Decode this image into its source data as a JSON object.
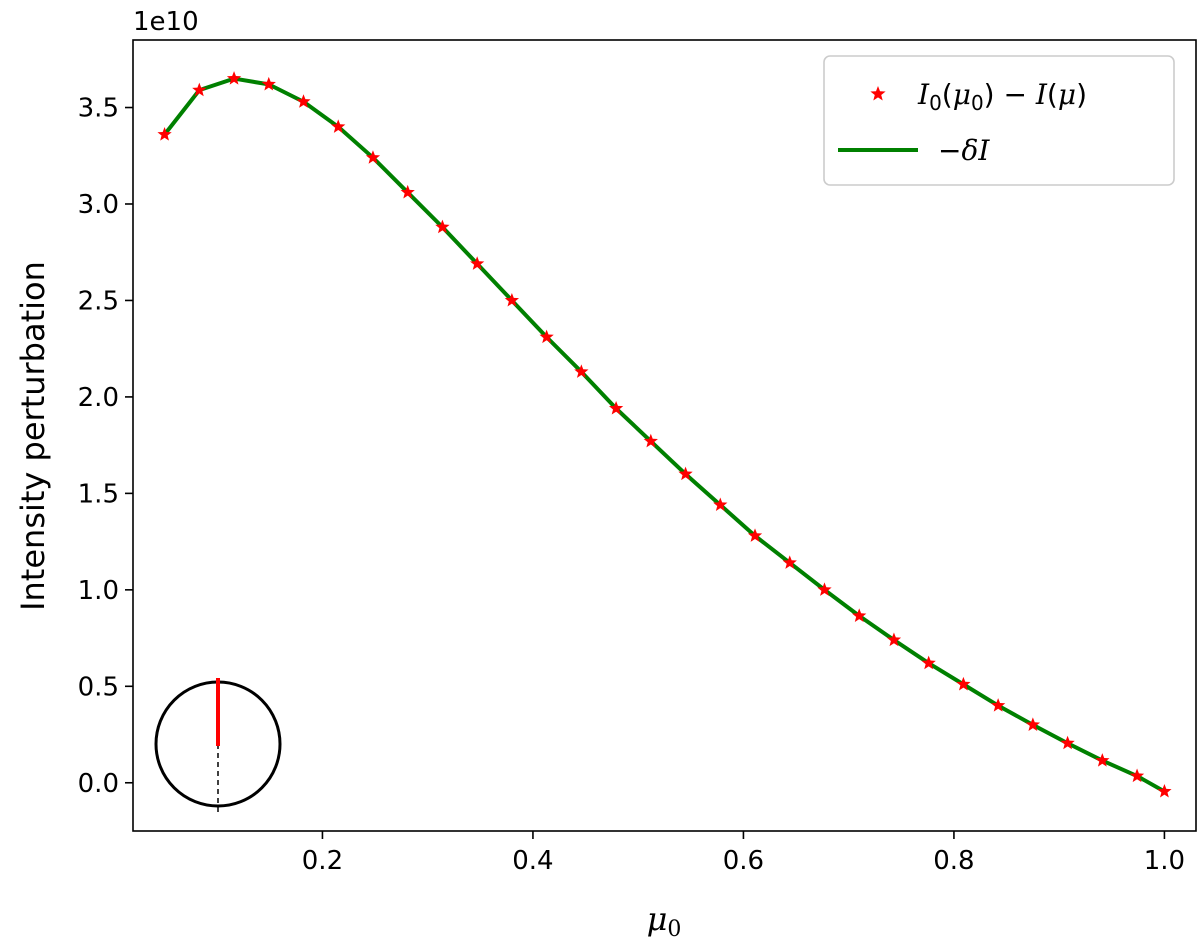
{
  "chart_data": {
    "type": "line",
    "xlabel": "μ0",
    "ylabel": "Intensity perturbation",
    "offset_text": "1e10",
    "xlim": [
      0.02,
      1.03
    ],
    "ylim": [
      -0.25,
      3.85
    ],
    "x_ticks": [
      0.2,
      0.4,
      0.6,
      0.8,
      1.0
    ],
    "x_tick_labels": [
      "0.2",
      "0.4",
      "0.6",
      "0.8",
      "1.0"
    ],
    "y_ticks": [
      0.0,
      0.5,
      1.0,
      1.5,
      2.0,
      2.5,
      3.0,
      3.5
    ],
    "y_tick_labels": [
      "0.0",
      "0.5",
      "1.0",
      "1.5",
      "2.0",
      "2.5",
      "3.0",
      "3.5"
    ],
    "grid": false,
    "legend_position": "top-right",
    "series": [
      {
        "name": "I0(μ0) − I(μ)",
        "style": "markers",
        "marker": "star",
        "color": "#ff0000",
        "x": [
          0.05,
          0.083,
          0.116,
          0.149,
          0.182,
          0.215,
          0.248,
          0.281,
          0.314,
          0.347,
          0.38,
          0.413,
          0.446,
          0.479,
          0.512,
          0.545,
          0.578,
          0.611,
          0.644,
          0.677,
          0.71,
          0.743,
          0.776,
          0.809,
          0.842,
          0.875,
          0.908,
          0.941,
          0.974,
          1.0
        ],
        "y": [
          3.36,
          3.59,
          3.65,
          3.62,
          3.53,
          3.4,
          3.24,
          3.06,
          2.88,
          2.69,
          2.5,
          2.31,
          2.13,
          1.94,
          1.77,
          1.6,
          1.44,
          1.28,
          1.14,
          1.0,
          0.865,
          0.74,
          0.62,
          0.51,
          0.4,
          0.3,
          0.205,
          0.115,
          0.035,
          -0.045
        ]
      },
      {
        "name": "−δI",
        "style": "line",
        "color": "#008000",
        "x": [
          0.05,
          0.083,
          0.116,
          0.149,
          0.182,
          0.215,
          0.248,
          0.281,
          0.314,
          0.347,
          0.38,
          0.413,
          0.446,
          0.479,
          0.512,
          0.545,
          0.578,
          0.611,
          0.644,
          0.677,
          0.71,
          0.743,
          0.776,
          0.809,
          0.842,
          0.875,
          0.908,
          0.941,
          0.974,
          1.0
        ],
        "y": [
          3.36,
          3.59,
          3.65,
          3.62,
          3.53,
          3.4,
          3.24,
          3.06,
          2.88,
          2.69,
          2.5,
          2.31,
          2.13,
          1.94,
          1.77,
          1.6,
          1.44,
          1.28,
          1.14,
          1.0,
          0.865,
          0.74,
          0.62,
          0.51,
          0.4,
          0.3,
          0.205,
          0.115,
          0.035,
          -0.045
        ]
      }
    ],
    "inset": {
      "description_icon": "disk-with-radial-line-icon",
      "circle_color": "#000000",
      "line_color": "#ff0000"
    }
  }
}
